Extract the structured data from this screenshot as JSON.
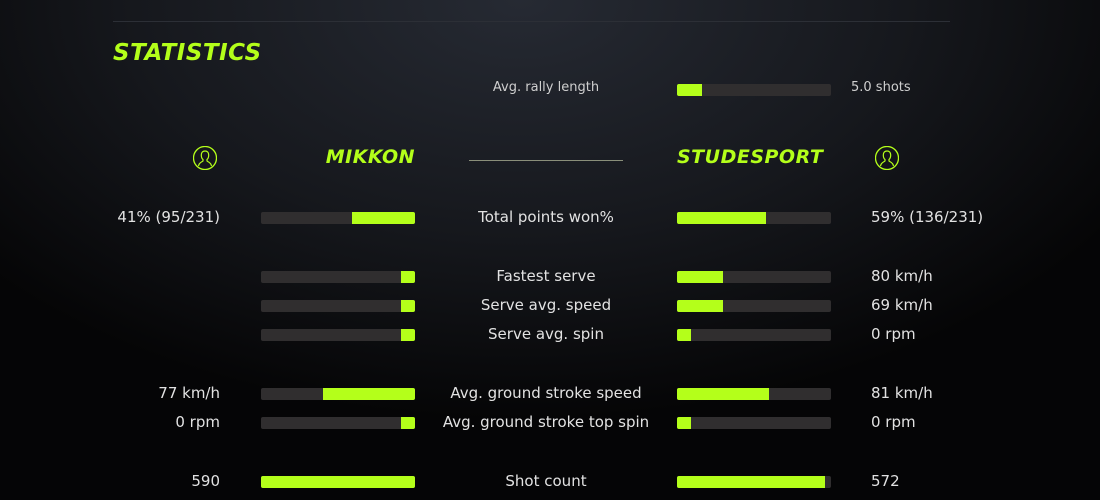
{
  "title": "STATISTICS",
  "accent": "#b4ff1a",
  "rally": {
    "label": "Avg. rally length",
    "value": "5.0 shots",
    "fill": 16
  },
  "players": {
    "left": {
      "name": "MIKKON",
      "icon": "user-circle-icon"
    },
    "right": {
      "name": "STUDESPORT",
      "icon": "user-circle-icon"
    }
  },
  "stats": [
    {
      "label": "Total points won%",
      "left_value": "41% (95/231)",
      "right_value": "59% (136/231)",
      "left_fill": 41,
      "right_fill": 58
    },
    {
      "label": "Fastest serve",
      "left_value": "",
      "right_value": "80 km/h",
      "left_fill": 9,
      "right_fill": 30
    },
    {
      "label": "Serve avg. speed",
      "left_value": "",
      "right_value": "69 km/h",
      "left_fill": 9,
      "right_fill": 30
    },
    {
      "label": "Serve avg. spin",
      "left_value": "",
      "right_value": "0 rpm",
      "left_fill": 9,
      "right_fill": 9
    },
    {
      "label": "Avg. ground stroke speed",
      "left_value": "77 km/h",
      "right_value": "81 km/h",
      "left_fill": 60,
      "right_fill": 60
    },
    {
      "label": "Avg. ground stroke top spin",
      "left_value": "0 rpm",
      "right_value": "0 rpm",
      "left_fill": 9,
      "right_fill": 9
    },
    {
      "label": "Shot count",
      "left_value": "590",
      "right_value": "572",
      "left_fill": 100,
      "right_fill": 96
    }
  ]
}
